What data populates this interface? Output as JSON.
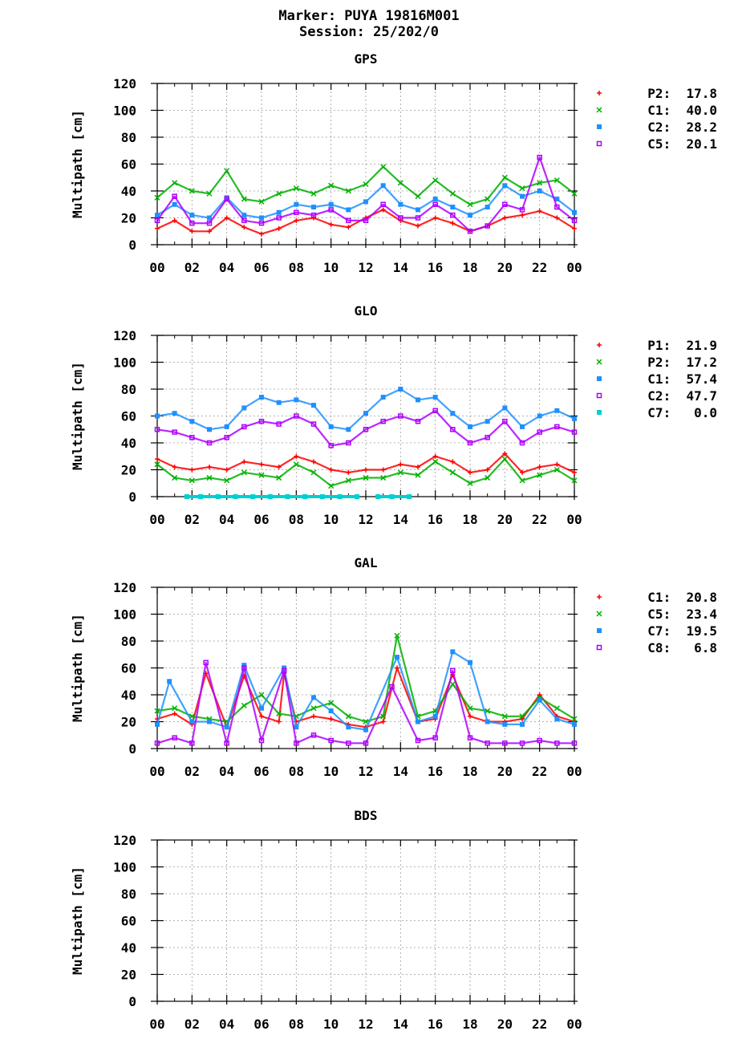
{
  "header": {
    "marker": "Marker: PUYA 19816M001",
    "session": "Session: 25/202/0"
  },
  "colors": {
    "red": "#ff0000",
    "green": "#00b000",
    "blue": "#1e90ff",
    "purple": "#b000ff",
    "cyan": "#00d0d0"
  },
  "chart_data": [
    {
      "type": "scatter",
      "title": "GPS",
      "xlabel": "",
      "ylabel": "Multipath [cm]",
      "xlim": [
        0,
        24
      ],
      "ylim": [
        0,
        120
      ],
      "xticks": [
        "00",
        "02",
        "04",
        "06",
        "08",
        "10",
        "12",
        "14",
        "16",
        "18",
        "20",
        "22",
        "00"
      ],
      "yticks": [
        "0",
        "20",
        "40",
        "60",
        "80",
        "100",
        "120"
      ],
      "grid": true,
      "legend_position": "right",
      "series": [
        {
          "name": "P2",
          "value": "17.8",
          "color": "red",
          "marker": "plus",
          "x": [
            0,
            1,
            2,
            3,
            4,
            5,
            6,
            7,
            8,
            9,
            10,
            11,
            12,
            13,
            14,
            15,
            16,
            17,
            18,
            19,
            20,
            21,
            22,
            23,
            24
          ],
          "y": [
            12,
            18,
            10,
            10,
            20,
            13,
            8,
            12,
            18,
            20,
            15,
            13,
            20,
            26,
            18,
            14,
            20,
            16,
            10,
            14,
            20,
            22,
            25,
            20,
            12
          ]
        },
        {
          "name": "C1",
          "value": "40.0",
          "color": "green",
          "marker": "x",
          "x": [
            0,
            1,
            2,
            3,
            4,
            5,
            6,
            7,
            8,
            9,
            10,
            11,
            12,
            13,
            14,
            15,
            16,
            17,
            18,
            19,
            20,
            21,
            22,
            23,
            24
          ],
          "y": [
            35,
            46,
            40,
            38,
            55,
            34,
            32,
            38,
            42,
            38,
            44,
            40,
            45,
            58,
            46,
            36,
            48,
            38,
            30,
            34,
            50,
            42,
            46,
            48,
            38
          ]
        },
        {
          "name": "C2",
          "value": "28.2",
          "color": "blue",
          "marker": "square",
          "x": [
            0,
            1,
            2,
            3,
            4,
            5,
            6,
            7,
            8,
            9,
            10,
            11,
            12,
            13,
            14,
            15,
            16,
            17,
            18,
            19,
            20,
            21,
            22,
            23,
            24
          ],
          "y": [
            22,
            30,
            22,
            20,
            35,
            22,
            20,
            24,
            30,
            28,
            30,
            26,
            32,
            44,
            30,
            26,
            34,
            28,
            22,
            28,
            44,
            36,
            40,
            34,
            24
          ]
        },
        {
          "name": "C5",
          "value": "20.1",
          "color": "purple",
          "marker": "open-square",
          "x": [
            0,
            1,
            2,
            3,
            4,
            5,
            6,
            7,
            8,
            9,
            10,
            11,
            12,
            13,
            14,
            15,
            16,
            17,
            18,
            19,
            20,
            21,
            22,
            23,
            24
          ],
          "y": [
            18,
            36,
            16,
            16,
            34,
            18,
            16,
            20,
            24,
            22,
            26,
            18,
            18,
            30,
            20,
            20,
            30,
            22,
            10,
            14,
            30,
            26,
            65,
            28,
            18
          ]
        }
      ]
    },
    {
      "type": "scatter",
      "title": "GLO",
      "xlabel": "",
      "ylabel": "Multipath [cm]",
      "xlim": [
        0,
        24
      ],
      "ylim": [
        0,
        120
      ],
      "xticks": [
        "00",
        "02",
        "04",
        "06",
        "08",
        "10",
        "12",
        "14",
        "16",
        "18",
        "20",
        "22",
        "00"
      ],
      "yticks": [
        "0",
        "20",
        "40",
        "60",
        "80",
        "100",
        "120"
      ],
      "grid": true,
      "legend_position": "right",
      "series": [
        {
          "name": "P1",
          "value": "21.9",
          "color": "red",
          "marker": "plus",
          "x": [
            0,
            1,
            2,
            3,
            4,
            5,
            6,
            7,
            8,
            9,
            10,
            11,
            12,
            13,
            14,
            15,
            16,
            17,
            18,
            19,
            20,
            21,
            22,
            23,
            24
          ],
          "y": [
            28,
            22,
            20,
            22,
            20,
            26,
            24,
            22,
            30,
            26,
            20,
            18,
            20,
            20,
            24,
            22,
            30,
            26,
            18,
            20,
            32,
            18,
            22,
            24,
            18
          ]
        },
        {
          "name": "P2",
          "value": "17.2",
          "color": "green",
          "marker": "x",
          "x": [
            0,
            1,
            2,
            3,
            4,
            5,
            6,
            7,
            8,
            9,
            10,
            11,
            12,
            13,
            14,
            15,
            16,
            17,
            18,
            19,
            20,
            21,
            22,
            23,
            24
          ],
          "y": [
            24,
            14,
            12,
            14,
            12,
            18,
            16,
            14,
            24,
            18,
            8,
            12,
            14,
            14,
            18,
            16,
            26,
            18,
            10,
            14,
            28,
            12,
            16,
            20,
            12
          ]
        },
        {
          "name": "C1",
          "value": "57.4",
          "color": "blue",
          "marker": "square",
          "x": [
            0,
            1,
            2,
            3,
            4,
            5,
            6,
            7,
            8,
            9,
            10,
            11,
            12,
            13,
            14,
            15,
            16,
            17,
            18,
            19,
            20,
            21,
            22,
            23,
            24
          ],
          "y": [
            60,
            62,
            56,
            50,
            52,
            66,
            74,
            70,
            72,
            68,
            52,
            50,
            62,
            74,
            80,
            72,
            74,
            62,
            52,
            56,
            66,
            52,
            60,
            64,
            58
          ]
        },
        {
          "name": "C2",
          "value": "47.7",
          "color": "purple",
          "marker": "open-square",
          "x": [
            0,
            1,
            2,
            3,
            4,
            5,
            6,
            7,
            8,
            9,
            10,
            11,
            12,
            13,
            14,
            15,
            16,
            17,
            18,
            19,
            20,
            21,
            22,
            23,
            24
          ],
          "y": [
            50,
            48,
            44,
            40,
            44,
            52,
            56,
            54,
            60,
            54,
            38,
            40,
            50,
            56,
            60,
            56,
            64,
            50,
            40,
            44,
            56,
            40,
            48,
            52,
            48
          ]
        },
        {
          "name": "C7",
          "value": "0.0",
          "color": "cyan",
          "marker": "square",
          "x": [
            1.7,
            2.5,
            3.5,
            4.5,
            5.5,
            6.5,
            7.5,
            8.5,
            9.5,
            10.5,
            11.5,
            12.7,
            13.5,
            14.5
          ],
          "y": [
            0,
            0,
            0,
            0,
            0,
            0,
            0,
            0,
            0,
            0,
            0,
            0,
            0,
            0
          ]
        }
      ]
    },
    {
      "type": "scatter",
      "title": "GAL",
      "xlabel": "",
      "ylabel": "Multipath [cm]",
      "xlim": [
        0,
        24
      ],
      "ylim": [
        0,
        120
      ],
      "xticks": [
        "00",
        "02",
        "04",
        "06",
        "08",
        "10",
        "12",
        "14",
        "16",
        "18",
        "20",
        "22",
        "00"
      ],
      "yticks": [
        "0",
        "20",
        "40",
        "60",
        "80",
        "100",
        "120"
      ],
      "grid": true,
      "legend_position": "right",
      "series": [
        {
          "name": "C1",
          "value": "20.8",
          "color": "red",
          "marker": "plus",
          "x": [
            0,
            1,
            2,
            2.8,
            4,
            5,
            6,
            7,
            7.3,
            8,
            9,
            10,
            11,
            12,
            13,
            13.8,
            15,
            16,
            17,
            18,
            19,
            20,
            21,
            22,
            23,
            24
          ],
          "y": [
            22,
            26,
            18,
            56,
            16,
            54,
            24,
            20,
            56,
            20,
            24,
            22,
            18,
            16,
            20,
            60,
            20,
            22,
            55,
            24,
            20,
            20,
            22,
            40,
            24,
            20
          ]
        },
        {
          "name": "C5",
          "value": "23.4",
          "color": "green",
          "marker": "x",
          "x": [
            0,
            1,
            2,
            3,
            4,
            5,
            6,
            7,
            8,
            9,
            10,
            11,
            12,
            13,
            13.8,
            15,
            16,
            17,
            18,
            19,
            20,
            21,
            22,
            23,
            24
          ],
          "y": [
            28,
            30,
            24,
            22,
            20,
            32,
            40,
            26,
            24,
            30,
            34,
            24,
            20,
            24,
            84,
            24,
            28,
            48,
            30,
            28,
            24,
            24,
            38,
            30,
            22
          ]
        },
        {
          "name": "C7",
          "value": "19.5",
          "color": "blue",
          "marker": "square",
          "x": [
            0,
            0.7,
            2,
            3,
            4,
            5,
            6,
            7.3,
            8,
            9,
            10,
            11,
            12,
            13.8,
            15,
            16,
            17,
            18,
            19,
            20,
            21,
            22,
            23,
            24
          ],
          "y": [
            18,
            50,
            20,
            20,
            16,
            62,
            30,
            60,
            16,
            38,
            28,
            16,
            14,
            68,
            20,
            24,
            72,
            64,
            20,
            18,
            18,
            36,
            22,
            18
          ]
        },
        {
          "name": "C8",
          "value": "6.8",
          "color": "purple",
          "marker": "open-square",
          "x": [
            0,
            1,
            2,
            2.8,
            4,
            5,
            6,
            7.3,
            8,
            9,
            10,
            11,
            12,
            13.5,
            15,
            16,
            17,
            18,
            19,
            20,
            21,
            22,
            23,
            24
          ],
          "y": [
            4,
            8,
            4,
            64,
            4,
            60,
            6,
            58,
            4,
            10,
            6,
            4,
            4,
            46,
            6,
            8,
            58,
            8,
            4,
            4,
            4,
            6,
            4,
            4
          ]
        }
      ]
    },
    {
      "type": "scatter",
      "title": "BDS",
      "xlabel": "",
      "ylabel": "Multipath [cm]",
      "xlim": [
        0,
        24
      ],
      "ylim": [
        0,
        120
      ],
      "xticks": [
        "00",
        "02",
        "04",
        "06",
        "08",
        "10",
        "12",
        "14",
        "16",
        "18",
        "20",
        "22",
        "00"
      ],
      "yticks": [
        "0",
        "20",
        "40",
        "60",
        "80",
        "100",
        "120"
      ],
      "grid": true,
      "legend_position": "right",
      "series": []
    }
  ]
}
